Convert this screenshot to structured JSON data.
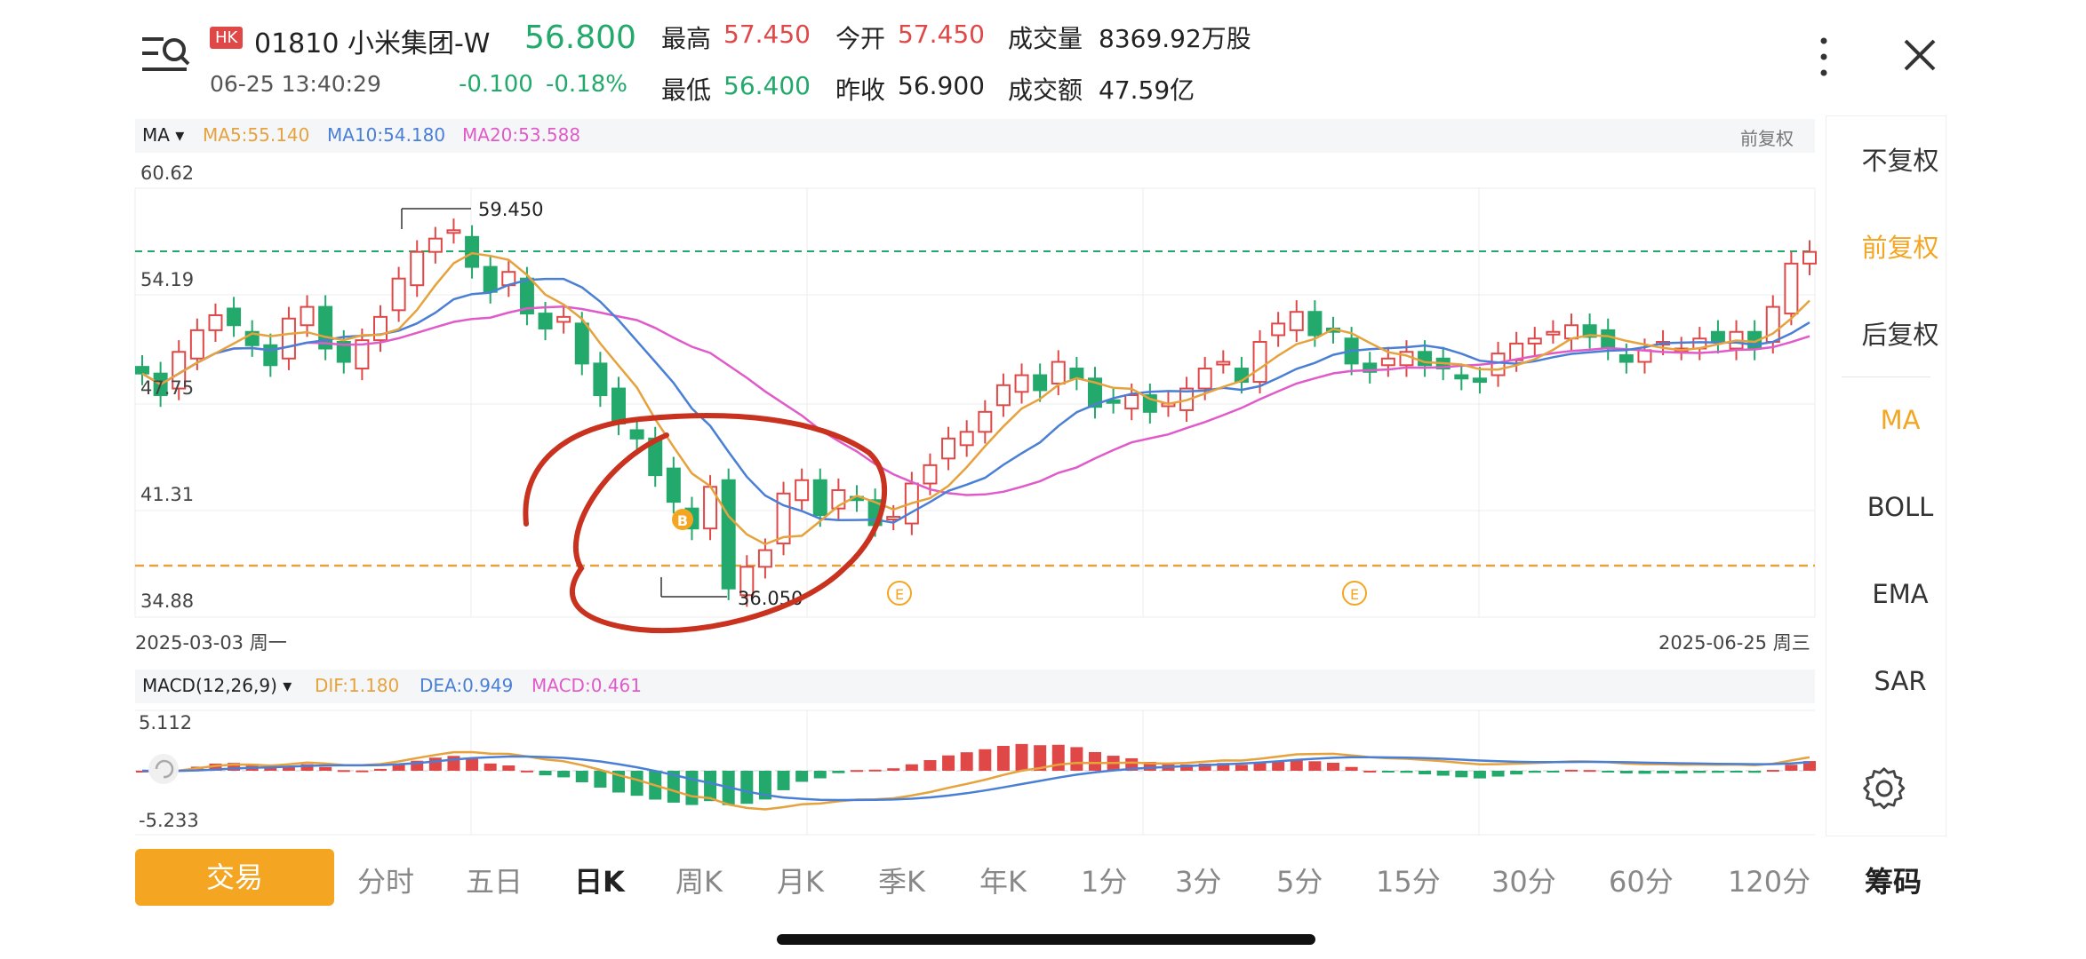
{
  "stock": {
    "market_badge": "HK",
    "code_name": "01810 小米集团-W",
    "price": "56.800",
    "datetime": "06-25 13:40:29",
    "change": "-0.100",
    "change_pct": "-0.18%"
  },
  "quote": {
    "high_label": "最高",
    "high_value": "57.450",
    "low_label": "最低",
    "low_value": "56.400",
    "open_label": "今开",
    "open_value": "57.450",
    "prev_close_label": "昨收",
    "prev_close_value": "56.900",
    "volume_label": "成交量",
    "volume_value": "8369.92万股",
    "turnover_label": "成交额",
    "turnover_value": "47.59亿"
  },
  "main_chart": {
    "indicator_label": "MA",
    "ma5": "MA5:55.140",
    "ma10": "MA10:54.180",
    "ma20": "MA20:53.588",
    "adjust_label": "前复权",
    "y_ticks": [
      "60.62",
      "54.19",
      "47.75",
      "41.31",
      "34.88"
    ],
    "high_marker": "59.450",
    "low_marker": "36.050",
    "start_date": "2025-03-03 周一",
    "end_date": "2025-06-25 周三"
  },
  "macd_chart": {
    "indicator_label": "MACD(12,26,9)",
    "dif": "DIF:1.180",
    "dea": "DEA:0.949",
    "macd": "MACD:0.461",
    "y_top": "5.112",
    "y_bottom": "-5.233"
  },
  "side_menu": [
    "不复权",
    "前复权",
    "后复权",
    "MA",
    "BOLL",
    "EMA",
    "SAR"
  ],
  "tabs": {
    "trade": "交易",
    "items": [
      "分时",
      "五日",
      "日K",
      "周K",
      "月K",
      "季K",
      "年K",
      "1分",
      "3分",
      "5分",
      "15分",
      "30分",
      "60分",
      "120分"
    ],
    "chips": "筹码"
  },
  "colors": {
    "up": "#e04848",
    "down": "#22a96b",
    "ma5": "#e6a23c",
    "ma10": "#4a7fd6",
    "ma20": "#e05bc9",
    "accent": "#f4a623"
  },
  "icons": [
    "menu-search-icon",
    "more-icon",
    "close-icon",
    "settings-icon",
    "refresh-icon",
    "buy-marker-icon",
    "event-marker-icon"
  ]
}
